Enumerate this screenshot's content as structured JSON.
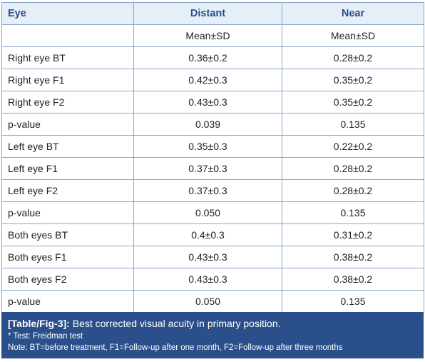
{
  "table": {
    "headers": {
      "eye": "Eye",
      "distant": "Distant",
      "near": "Near"
    },
    "subheaders": {
      "eye": "",
      "distant": "Mean±SD",
      "near": "Mean±SD"
    },
    "rows": [
      {
        "label": "Right eye BT",
        "distant": "0.36±0.2",
        "near": "0.28±0.2"
      },
      {
        "label": "Right eye F1",
        "distant": "0.42±0.3",
        "near": "0.35±0.2"
      },
      {
        "label": "Right eye F2",
        "distant": "0.43±0.3",
        "near": "0.35±0.2"
      },
      {
        "label": "p-value",
        "distant": "0.039",
        "near": "0.135"
      },
      {
        "label": "Left eye BT",
        "distant": "0.35±0.3",
        "near": "0.22±0.2"
      },
      {
        "label": "Left eye F1",
        "distant": "0.37±0.3",
        "near": "0.28±0.2"
      },
      {
        "label": "Left eye F2",
        "distant": "0.37±0.3",
        "near": "0.28±0.2"
      },
      {
        "label": "p-value",
        "distant": "0.050",
        "near": "0.135"
      },
      {
        "label": "Both eyes BT",
        "distant": "0.4±0.3",
        "near": "0.31±0.2"
      },
      {
        "label": "Both eyes F1",
        "distant": "0.43±0.3",
        "near": "0.38±0.2"
      },
      {
        "label": "Both eyes F2",
        "distant": "0.43±0.3",
        "near": "0.38±0.2"
      },
      {
        "label": "p-value",
        "distant": "0.050",
        "near": "0.135"
      }
    ]
  },
  "caption": {
    "tag": "[Table/Fig-3]:",
    "title": " Best corrected visual acuity in primary position.",
    "test_note": "* Test: Freidman test",
    "abbrev_note": "Note: BT=before treatment, F1=Follow-up after one month, F2=Follow-up after three months"
  },
  "colors": {
    "header_text": "#2a4f8a",
    "header_bg": "#e6eef7",
    "border": "#8aa6c8",
    "caption_bg": "#2a4f8a"
  }
}
